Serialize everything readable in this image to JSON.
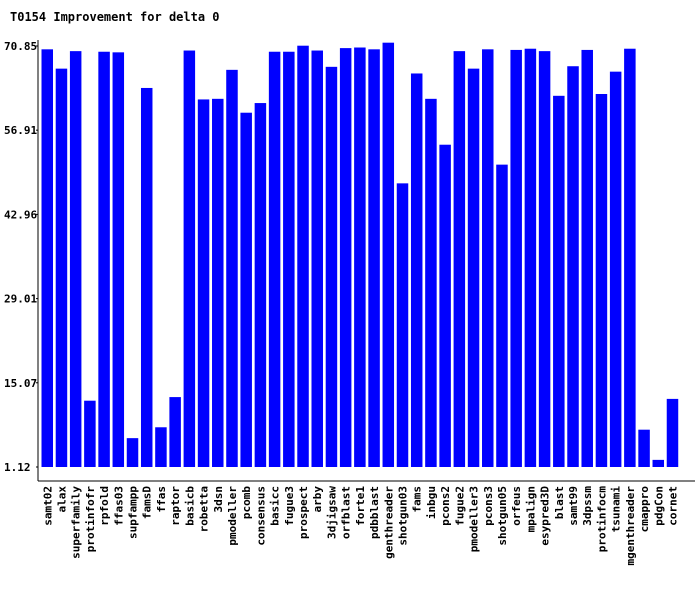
{
  "chart_data": {
    "type": "bar",
    "title": "T0154 Improvement for delta 0",
    "xlabel": "",
    "ylabel": "",
    "ylim": [
      1.12,
      70.85
    ],
    "yticks": [
      "70.85",
      "56.91",
      "42.96",
      "29.01",
      "15.07",
      "1.12"
    ],
    "bar_color": "#0000ff",
    "grid": false,
    "categories": [
      "samt02",
      "alax",
      "superfamily",
      "protinfofr",
      "rpfold",
      "ffas03",
      "supfampp",
      "famsD",
      "ffas",
      "raptor",
      "basicb",
      "robetta",
      "3dsn",
      "pmodeller",
      "pcomb",
      "consensus",
      "basicc",
      "fugue3",
      "prospect",
      "arby",
      "3djigsaw",
      "orfblast",
      "forte1",
      "pdbblast",
      "genthreader",
      "shotgun03",
      "fams",
      "inbgu",
      "pcons2",
      "fugue2",
      "pmodeller3",
      "pcons3",
      "shotgun05",
      "orfeus",
      "mpalign",
      "esypred3D",
      "blast",
      "samt99",
      "3dpssm",
      "protinfocm",
      "tsunami",
      "mgenthreader",
      "cmappro",
      "pdgCon",
      "cornet"
    ],
    "values": [
      70.3,
      67.1,
      70.0,
      12.1,
      69.9,
      69.8,
      5.9,
      63.9,
      7.7,
      12.7,
      70.1,
      62.0,
      62.1,
      66.9,
      59.8,
      61.4,
      69.9,
      69.9,
      70.9,
      70.1,
      67.4,
      70.5,
      70.6,
      70.3,
      71.4,
      48.1,
      66.3,
      62.1,
      54.5,
      70.0,
      67.1,
      70.3,
      51.2,
      70.2,
      70.4,
      70.0,
      62.6,
      67.5,
      70.2,
      62.9,
      66.6,
      70.4,
      7.3,
      2.3,
      12.4
    ]
  }
}
